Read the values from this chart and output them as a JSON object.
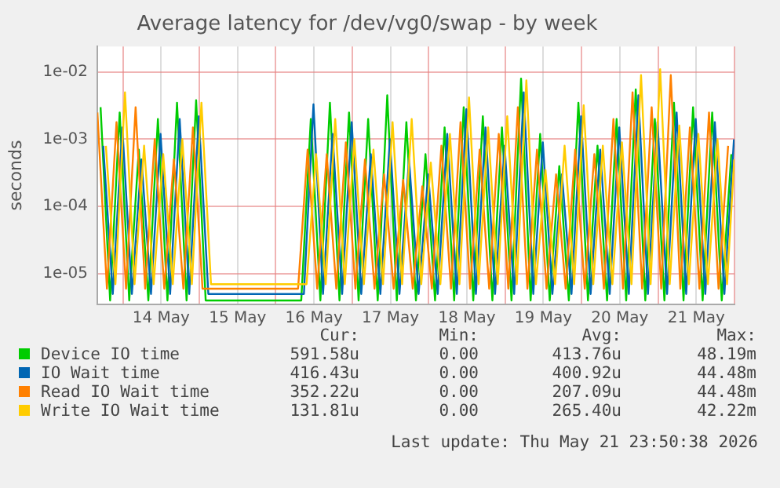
{
  "chart_data": {
    "type": "line",
    "title": "Average latency for /dev/vg0/swap - by week",
    "ylabel": "seconds",
    "log": true,
    "grid": true,
    "legend": "bottom",
    "marker": "none",
    "series": [
      {
        "name": "Device IO time",
        "color": "#00cc00",
        "x": [
          "2026-05-13T17:00",
          "2026-05-13T20:00",
          "2026-05-13T23:00",
          "2026-05-14T02:00",
          "2026-05-14T05:00",
          "2026-05-14T08:00",
          "2026-05-14T11:00",
          "2026-05-14T14:00",
          "2026-05-14T17:00",
          "2026-05-14T20:00",
          "2026-05-14T23:00",
          "2026-05-15T02:00",
          "2026-05-15T05:00",
          "2026-05-15T08:00",
          "2026-05-15T11:00",
          "2026-05-15T14:00",
          "2026-05-15T17:00",
          "2026-05-15T20:00",
          "2026-05-15T23:00",
          "2026-05-16T02:00",
          "2026-05-16T05:00",
          "2026-05-16T08:00",
          "2026-05-16T11:00",
          "2026-05-16T14:00",
          "2026-05-16T17:00",
          "2026-05-16T20:00",
          "2026-05-16T23:00",
          "2026-05-17T02:00",
          "2026-05-17T05:00",
          "2026-05-17T08:00",
          "2026-05-17T11:00",
          "2026-05-17T14:00",
          "2026-05-17T17:00",
          "2026-05-17T20:00",
          "2026-05-17T23:00",
          "2026-05-18T02:00",
          "2026-05-18T05:00",
          "2026-05-18T08:00",
          "2026-05-18T11:00",
          "2026-05-18T14:00",
          "2026-05-18T17:00",
          "2026-05-18T20:00",
          "2026-05-18T23:00",
          "2026-05-19T02:00",
          "2026-05-19T05:00",
          "2026-05-19T08:00",
          "2026-05-19T11:00",
          "2026-05-19T14:00",
          "2026-05-19T17:00",
          "2026-05-19T20:00",
          "2026-05-19T23:00",
          "2026-05-20T02:00",
          "2026-05-20T05:00",
          "2026-05-20T08:00",
          "2026-05-20T11:00",
          "2026-05-20T14:00",
          "2026-05-20T17:00",
          "2026-05-20T20:00",
          "2026-05-20T23:00",
          "2026-05-21T02:00",
          "2026-05-21T05:00",
          "2026-05-21T08:00",
          "2026-05-21T11:00",
          "2026-05-21T14:00",
          "2026-05-21T17:00",
          "2026-05-21T20:00",
          "2026-05-21T23:00"
        ],
        "values": [
          0.003,
          4e-06,
          0.0025,
          4e-06,
          0.0007,
          4e-06,
          0.002,
          4e-06,
          0.0035,
          4e-06,
          0.0038,
          4e-06,
          4e-06,
          4e-06,
          4e-06,
          4e-06,
          4e-06,
          4e-06,
          4e-06,
          4e-06,
          4e-06,
          4e-06,
          0.002,
          4e-06,
          0.0035,
          4e-06,
          0.0025,
          4e-06,
          0.002,
          4e-06,
          0.0045,
          4e-06,
          0.0018,
          4e-06,
          0.0006,
          4e-06,
          0.0015,
          4e-06,
          0.003,
          4e-06,
          0.0022,
          4e-06,
          0.0015,
          4e-06,
          0.008,
          4e-06,
          0.0012,
          4e-06,
          0.0004,
          4e-06,
          0.0035,
          4e-06,
          0.0008,
          4e-06,
          0.002,
          4e-06,
          0.0055,
          4e-06,
          0.002,
          4e-06,
          0.0035,
          4e-06,
          0.003,
          4e-06,
          0.0025,
          4e-06,
          0.0006
        ]
      },
      {
        "name": "IO Wait time",
        "color": "#0066b3",
        "x": [
          "2026-05-13T17:50",
          "2026-05-13T20:50",
          "2026-05-13T23:50",
          "2026-05-14T02:50",
          "2026-05-14T05:50",
          "2026-05-14T08:50",
          "2026-05-14T11:50",
          "2026-05-14T14:50",
          "2026-05-14T17:50",
          "2026-05-14T20:50",
          "2026-05-14T23:50",
          "2026-05-15T02:50",
          "2026-05-15T05:50",
          "2026-05-15T08:50",
          "2026-05-15T11:50",
          "2026-05-15T14:50",
          "2026-05-15T17:50",
          "2026-05-15T20:50",
          "2026-05-15T23:50",
          "2026-05-16T02:50",
          "2026-05-16T05:50",
          "2026-05-16T08:50",
          "2026-05-16T11:50",
          "2026-05-16T14:50",
          "2026-05-16T17:50",
          "2026-05-16T20:50",
          "2026-05-16T23:50",
          "2026-05-17T02:50",
          "2026-05-17T05:50",
          "2026-05-17T08:50",
          "2026-05-17T11:50",
          "2026-05-17T14:50",
          "2026-05-17T17:50",
          "2026-05-17T20:50",
          "2026-05-17T23:50",
          "2026-05-18T02:50",
          "2026-05-18T05:50",
          "2026-05-18T08:50",
          "2026-05-18T11:50",
          "2026-05-18T14:50",
          "2026-05-18T17:50",
          "2026-05-18T20:50",
          "2026-05-18T23:50",
          "2026-05-19T02:50",
          "2026-05-19T05:50",
          "2026-05-19T08:50",
          "2026-05-19T11:50",
          "2026-05-19T14:50",
          "2026-05-19T17:50",
          "2026-05-19T20:50",
          "2026-05-19T23:50",
          "2026-05-20T02:50",
          "2026-05-20T05:50",
          "2026-05-20T08:50",
          "2026-05-20T11:50",
          "2026-05-20T14:50",
          "2026-05-20T17:50",
          "2026-05-20T20:50",
          "2026-05-20T23:50",
          "2026-05-21T02:50",
          "2026-05-21T05:50",
          "2026-05-21T08:50",
          "2026-05-21T11:50",
          "2026-05-21T14:50",
          "2026-05-21T17:50",
          "2026-05-21T20:50",
          "2026-05-21T23:50"
        ],
        "values": [
          0.0008,
          5e-06,
          0.0015,
          5e-06,
          0.0005,
          5e-06,
          0.0012,
          5e-06,
          0.002,
          5e-06,
          0.0022,
          5e-06,
          5e-06,
          5e-06,
          5e-06,
          5e-06,
          5e-06,
          5e-06,
          5e-06,
          5e-06,
          5e-06,
          5e-06,
          0.0033,
          5e-06,
          0.0012,
          5e-06,
          0.0018,
          5e-06,
          0.0006,
          5e-06,
          0.001,
          5e-06,
          0.0005,
          5e-06,
          0.0003,
          5e-06,
          0.0012,
          5e-06,
          0.0028,
          5e-06,
          0.0015,
          5e-06,
          0.0008,
          5e-06,
          0.005,
          5e-06,
          0.0009,
          5e-06,
          0.0003,
          5e-06,
          0.0022,
          5e-06,
          0.0007,
          5e-06,
          0.0015,
          5e-06,
          0.0045,
          5e-06,
          0.0018,
          5e-06,
          0.0025,
          5e-06,
          0.002,
          5e-06,
          0.0018,
          5e-06,
          0.001
        ]
      },
      {
        "name": "Read IO Wait time",
        "color": "#ff8000",
        "x": [
          "2026-05-13T16:00",
          "2026-05-13T19:00",
          "2026-05-13T22:00",
          "2026-05-14T01:00",
          "2026-05-14T04:00",
          "2026-05-14T07:00",
          "2026-05-14T10:00",
          "2026-05-14T13:00",
          "2026-05-14T16:00",
          "2026-05-14T19:00",
          "2026-05-14T22:00",
          "2026-05-15T01:00",
          "2026-05-15T04:00",
          "2026-05-15T07:00",
          "2026-05-15T10:00",
          "2026-05-15T13:00",
          "2026-05-15T16:00",
          "2026-05-15T19:00",
          "2026-05-15T22:00",
          "2026-05-16T01:00",
          "2026-05-16T04:00",
          "2026-05-16T07:00",
          "2026-05-16T10:00",
          "2026-05-16T13:00",
          "2026-05-16T16:00",
          "2026-05-16T19:00",
          "2026-05-16T22:00",
          "2026-05-17T01:00",
          "2026-05-17T04:00",
          "2026-05-17T07:00",
          "2026-05-17T10:00",
          "2026-05-17T13:00",
          "2026-05-17T16:00",
          "2026-05-17T19:00",
          "2026-05-17T22:00",
          "2026-05-18T01:00",
          "2026-05-18T04:00",
          "2026-05-18T07:00",
          "2026-05-18T10:00",
          "2026-05-18T13:00",
          "2026-05-18T16:00",
          "2026-05-18T19:00",
          "2026-05-18T22:00",
          "2026-05-19T01:00",
          "2026-05-19T04:00",
          "2026-05-19T07:00",
          "2026-05-19T10:00",
          "2026-05-19T13:00",
          "2026-05-19T16:00",
          "2026-05-19T19:00",
          "2026-05-19T22:00",
          "2026-05-20T01:00",
          "2026-05-20T04:00",
          "2026-05-20T07:00",
          "2026-05-20T10:00",
          "2026-05-20T13:00",
          "2026-05-20T16:00",
          "2026-05-20T19:00",
          "2026-05-20T22:00",
          "2026-05-21T01:00",
          "2026-05-21T04:00",
          "2026-05-21T07:00",
          "2026-05-21T10:00",
          "2026-05-21T13:00",
          "2026-05-21T16:00",
          "2026-05-21T19:00",
          "2026-05-21T22:00"
        ],
        "values": [
          0.0025,
          6e-06,
          0.0018,
          6e-06,
          0.003,
          6e-06,
          0.001,
          6e-06,
          0.0005,
          6e-06,
          0.0015,
          6e-06,
          6e-06,
          6e-06,
          6e-06,
          6e-06,
          6e-06,
          6e-06,
          6e-06,
          6e-06,
          6e-06,
          6e-06,
          0.0007,
          6e-06,
          0.0006,
          6e-06,
          0.0009,
          6e-06,
          0.0005,
          6e-06,
          0.0003,
          6e-06,
          0.00025,
          6e-06,
          0.0002,
          6e-06,
          0.0008,
          6e-06,
          0.0018,
          6e-06,
          0.0007,
          6e-06,
          0.0012,
          6e-06,
          0.003,
          6e-06,
          0.0007,
          6e-06,
          0.0003,
          6e-06,
          0.0007,
          6e-06,
          0.0006,
          6e-06,
          0.002,
          6e-06,
          0.005,
          6e-06,
          0.003,
          6e-06,
          0.009,
          6e-06,
          0.0015,
          6e-06,
          0.0025,
          6e-06,
          0.0008
        ]
      },
      {
        "name": "Write IO Wait time",
        "color": "#ffcc00",
        "x": [
          "2026-05-13T18:40",
          "2026-05-13T21:40",
          "2026-05-14T00:40",
          "2026-05-14T03:40",
          "2026-05-14T06:40",
          "2026-05-14T09:40",
          "2026-05-14T12:40",
          "2026-05-14T15:40",
          "2026-05-14T18:40",
          "2026-05-14T21:40",
          "2026-05-15T00:40",
          "2026-05-15T03:40",
          "2026-05-15T06:40",
          "2026-05-15T09:40",
          "2026-05-15T12:40",
          "2026-05-15T15:40",
          "2026-05-15T18:40",
          "2026-05-15T21:40",
          "2026-05-16T00:40",
          "2026-05-16T03:40",
          "2026-05-16T06:40",
          "2026-05-16T09:40",
          "2026-05-16T12:40",
          "2026-05-16T15:40",
          "2026-05-16T18:40",
          "2026-05-16T21:40",
          "2026-05-17T00:40",
          "2026-05-17T03:40",
          "2026-05-17T06:40",
          "2026-05-17T09:40",
          "2026-05-17T12:40",
          "2026-05-17T15:40",
          "2026-05-17T18:40",
          "2026-05-17T21:40",
          "2026-05-18T00:40",
          "2026-05-18T03:40",
          "2026-05-18T06:40",
          "2026-05-18T09:40",
          "2026-05-18T12:40",
          "2026-05-18T15:40",
          "2026-05-18T18:40",
          "2026-05-18T21:40",
          "2026-05-19T00:40",
          "2026-05-19T03:40",
          "2026-05-19T06:40",
          "2026-05-19T09:40",
          "2026-05-19T12:40",
          "2026-05-19T15:40",
          "2026-05-19T18:40",
          "2026-05-19T21:40",
          "2026-05-20T00:40",
          "2026-05-20T03:40",
          "2026-05-20T06:40",
          "2026-05-20T09:40",
          "2026-05-20T12:40",
          "2026-05-20T15:40",
          "2026-05-20T18:40",
          "2026-05-20T21:40",
          "2026-05-21T00:40",
          "2026-05-21T03:40",
          "2026-05-21T06:40",
          "2026-05-21T09:40",
          "2026-05-21T12:40",
          "2026-05-21T15:40",
          "2026-05-21T18:40",
          "2026-05-21T21:40",
          "2026-05-21T23:55"
        ],
        "values": [
          0.0008,
          7e-06,
          0.005,
          7e-06,
          0.0008,
          7e-06,
          0.0006,
          7e-06,
          0.001,
          7e-06,
          0.0035,
          7e-06,
          7e-06,
          7e-06,
          7e-06,
          7e-06,
          7e-06,
          7e-06,
          7e-06,
          7e-06,
          7e-06,
          7e-06,
          0.0006,
          7e-06,
          0.002,
          7e-06,
          0.001,
          7e-06,
          0.0007,
          7e-06,
          0.0018,
          7e-06,
          0.002,
          7e-06,
          0.00045,
          7e-06,
          0.0012,
          7e-06,
          0.0042,
          7e-06,
          0.0015,
          7e-06,
          0.0022,
          7e-06,
          0.0075,
          7e-06,
          0.00035,
          7e-06,
          0.0008,
          7e-06,
          0.0032,
          7e-06,
          0.0008,
          7e-06,
          0.0009,
          7e-06,
          0.009,
          7e-06,
          0.011,
          7e-06,
          0.0016,
          7e-06,
          0.0012,
          7e-06,
          0.001,
          7e-06,
          0.0005
        ]
      }
    ],
    "ylim": [
      3.5e-06,
      0.024
    ],
    "yticks": [
      {
        "value": 1e-05,
        "label": "1e-05"
      },
      {
        "value": 0.0001,
        "label": "1e-04"
      },
      {
        "value": 0.001,
        "label": "1e-03"
      },
      {
        "value": 0.01,
        "label": "1e-02"
      }
    ],
    "xlim": [
      "2026-05-13T16:00",
      "2026-05-22T00:00"
    ],
    "xticks": [
      {
        "value": "2026-05-14T00:00",
        "label": null
      },
      {
        "value": "2026-05-14T12:00",
        "label": "14 May"
      },
      {
        "value": "2026-05-15T00:00",
        "label": null
      },
      {
        "value": "2026-05-15T12:00",
        "label": "15 May"
      },
      {
        "value": "2026-05-16T00:00",
        "label": null
      },
      {
        "value": "2026-05-16T12:00",
        "label": "16 May"
      },
      {
        "value": "2026-05-17T00:00",
        "label": null
      },
      {
        "value": "2026-05-17T12:00",
        "label": "17 May"
      },
      {
        "value": "2026-05-18T00:00",
        "label": null
      },
      {
        "value": "2026-05-18T12:00",
        "label": "18 May"
      },
      {
        "value": "2026-05-19T00:00",
        "label": null
      },
      {
        "value": "2026-05-19T12:00",
        "label": "19 May"
      },
      {
        "value": "2026-05-20T00:00",
        "label": null
      },
      {
        "value": "2026-05-20T12:00",
        "label": "20 May"
      },
      {
        "value": "2026-05-21T00:00",
        "label": null
      },
      {
        "value": "2026-05-21T12:00",
        "label": "21 May"
      },
      {
        "value": "2026-05-22T00:00",
        "label": null
      }
    ],
    "annotations": [
      "Cur:",
      "Min:",
      "Avg:",
      "Max:",
      "591.58u",
      "0.00",
      "413.76u",
      "48.19m",
      "416.43u",
      "0.00",
      "400.92u",
      "44.48m",
      "352.22u",
      "0.00",
      "207.09u",
      "44.48m",
      "131.81u",
      "0.00",
      "265.40u",
      "42.22m",
      "Last update: Thu May 21 23:50:38 2026"
    ]
  }
}
